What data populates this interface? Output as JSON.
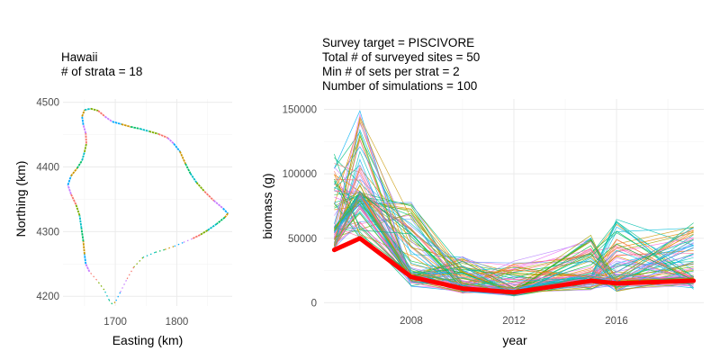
{
  "chart_data": [
    {
      "type": "scatter",
      "title_lines": [
        "Hawaii",
        "# of strata = 18"
      ],
      "xlabel": "Easting (km)",
      "ylabel": "Northing (km)",
      "xlim": [
        1615,
        1890
      ],
      "ylim": [
        4185,
        4505
      ],
      "x_ticks": [
        1700,
        1800
      ],
      "y_ticks": [
        4200,
        4300,
        4400,
        4500
      ],
      "grid": true,
      "coastline": [
        [
          1650,
          4488
        ],
        [
          1660,
          4490
        ],
        [
          1672,
          4487
        ],
        [
          1683,
          4478
        ],
        [
          1695,
          4470
        ],
        [
          1710,
          4466
        ],
        [
          1725,
          4462
        ],
        [
          1740,
          4459
        ],
        [
          1755,
          4455
        ],
        [
          1770,
          4451
        ],
        [
          1785,
          4445
        ],
        [
          1795,
          4436
        ],
        [
          1805,
          4424
        ],
        [
          1814,
          4405
        ],
        [
          1822,
          4390
        ],
        [
          1832,
          4376
        ],
        [
          1845,
          4362
        ],
        [
          1860,
          4348
        ],
        [
          1875,
          4336
        ],
        [
          1883,
          4328
        ],
        [
          1878,
          4322
        ],
        [
          1865,
          4312
        ],
        [
          1850,
          4302
        ],
        [
          1838,
          4295
        ],
        [
          1825,
          4289
        ],
        [
          1810,
          4283
        ],
        [
          1795,
          4277
        ],
        [
          1780,
          4272
        ],
        [
          1765,
          4268
        ],
        [
          1745,
          4260
        ],
        [
          1730,
          4245
        ],
        [
          1718,
          4225
        ],
        [
          1708,
          4206
        ],
        [
          1700,
          4191
        ],
        [
          1695,
          4188
        ],
        [
          1690,
          4194
        ],
        [
          1682,
          4210
        ],
        [
          1670,
          4225
        ],
        [
          1658,
          4238
        ],
        [
          1652,
          4250
        ],
        [
          1650,
          4265
        ],
        [
          1648,
          4285
        ],
        [
          1645,
          4305
        ],
        [
          1642,
          4325
        ],
        [
          1636,
          4342
        ],
        [
          1628,
          4358
        ],
        [
          1623,
          4372
        ],
        [
          1628,
          4386
        ],
        [
          1638,
          4398
        ],
        [
          1646,
          4410
        ],
        [
          1650,
          4423
        ],
        [
          1653,
          4436
        ],
        [
          1652,
          4452
        ],
        [
          1648,
          4465
        ],
        [
          1646,
          4478
        ],
        [
          1650,
          4488
        ]
      ]
    },
    {
      "type": "line",
      "title_lines": [
        "Survey target = PISCIVORE",
        "Total # of surveyed sites = 50",
        "Min # of sets per strat = 2",
        "Number of simulations = 100"
      ],
      "xlabel": "year",
      "ylabel": "biomass (g)",
      "xlim": [
        2004.6,
        2019.4
      ],
      "ylim": [
        -6000,
        158000
      ],
      "x_ticks": [
        2008,
        2012,
        2016
      ],
      "y_ticks": [
        0,
        50000,
        100000,
        150000
      ],
      "y_tick_labels": [
        "0",
        "50000",
        "100000",
        "150000"
      ],
      "grid": true,
      "years": [
        2005,
        2006,
        2008,
        2010,
        2012,
        2015,
        2016,
        2019
      ],
      "mean_series": {
        "color": "#ff0000",
        "values": [
          41000,
          50000,
          20000,
          11000,
          8000,
          17000,
          15000,
          17000
        ]
      },
      "simulation_count": 100,
      "simulation_envelope": {
        "low": [
          22000,
          35000,
          8000,
          3000,
          1000,
          5000,
          4000,
          5000
        ],
        "high": [
          118000,
          150000,
          80000,
          36000,
          33000,
          55000,
          68000,
          62000
        ]
      },
      "simulation_colors": [
        "#f8766d",
        "#e58700",
        "#c99800",
        "#a3a500",
        "#6bb100",
        "#00ba38",
        "#00bf7d",
        "#00c0af",
        "#00bcd8",
        "#00b0f6",
        "#619cff",
        "#b983ff",
        "#e76bf3",
        "#fd61d1",
        "#ff67a4"
      ]
    }
  ]
}
